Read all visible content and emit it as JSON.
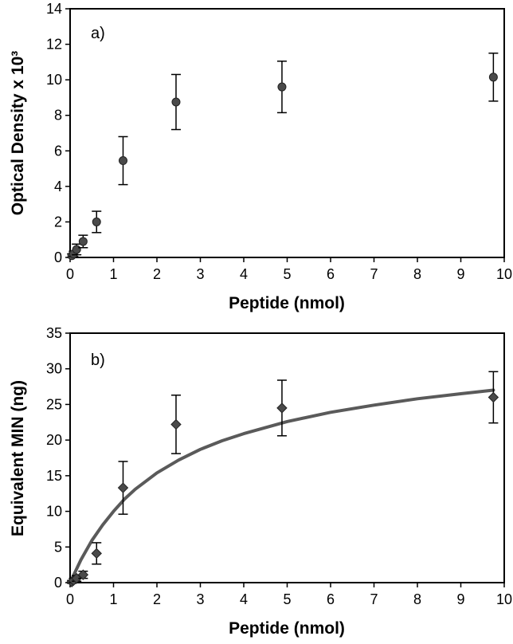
{
  "chart_data": [
    {
      "type": "scatter",
      "panel_label": "a)",
      "xlabel": "Peptide (nmol)",
      "ylabel": "Optical Density x 10³",
      "xlim": [
        0,
        10
      ],
      "ylim": [
        0,
        14
      ],
      "xticks": [
        0,
        1,
        2,
        3,
        4,
        5,
        6,
        7,
        8,
        9,
        10
      ],
      "yticks": [
        0,
        2,
        4,
        6,
        8,
        10,
        12,
        14
      ],
      "grid": false,
      "marker": "circle",
      "marker_color": "#4a4a4a",
      "series": [
        {
          "x": [
            0.04,
            0.08,
            0.15,
            0.3,
            0.61,
            1.22,
            2.44,
            4.88,
            9.75
          ],
          "y": [
            0.1,
            0.2,
            0.45,
            0.9,
            2.0,
            5.45,
            8.75,
            9.6,
            10.15
          ],
          "yerr": [
            0.1,
            0.15,
            0.3,
            0.35,
            0.6,
            1.35,
            1.55,
            1.45,
            1.35
          ]
        }
      ]
    },
    {
      "type": "scatter",
      "panel_label": "b)",
      "xlabel": "Peptide (nmol)",
      "ylabel": "Equivalent MIN (ng)",
      "xlim": [
        0,
        10
      ],
      "ylim": [
        0,
        35
      ],
      "xticks": [
        0,
        1,
        2,
        3,
        4,
        5,
        6,
        7,
        8,
        9,
        10
      ],
      "yticks": [
        0,
        5,
        10,
        15,
        20,
        25,
        30,
        35
      ],
      "grid": false,
      "marker": "diamond",
      "marker_color": "#4a4a4a",
      "fit_color": "#5a5a5a",
      "series": [
        {
          "x": [
            0.04,
            0.08,
            0.15,
            0.3,
            0.61,
            1.22,
            2.44,
            4.88,
            9.75
          ],
          "y": [
            0.1,
            0.3,
            0.6,
            1.1,
            4.1,
            13.3,
            22.2,
            24.5,
            26.0
          ],
          "yerr": [
            0.2,
            0.3,
            0.4,
            0.5,
            1.5,
            3.7,
            4.1,
            3.9,
            3.6
          ]
        }
      ],
      "fit_curve": {
        "x": [
          0,
          0.25,
          0.5,
          0.75,
          1,
          1.25,
          1.5,
          2,
          2.5,
          3,
          3.5,
          4,
          5,
          6,
          7,
          8,
          9,
          9.75
        ],
        "y": [
          0,
          3.2,
          5.9,
          8.1,
          10.0,
          11.7,
          13.1,
          15.4,
          17.2,
          18.7,
          19.9,
          20.9,
          22.6,
          23.9,
          24.9,
          25.8,
          26.5,
          27.0
        ]
      }
    }
  ]
}
